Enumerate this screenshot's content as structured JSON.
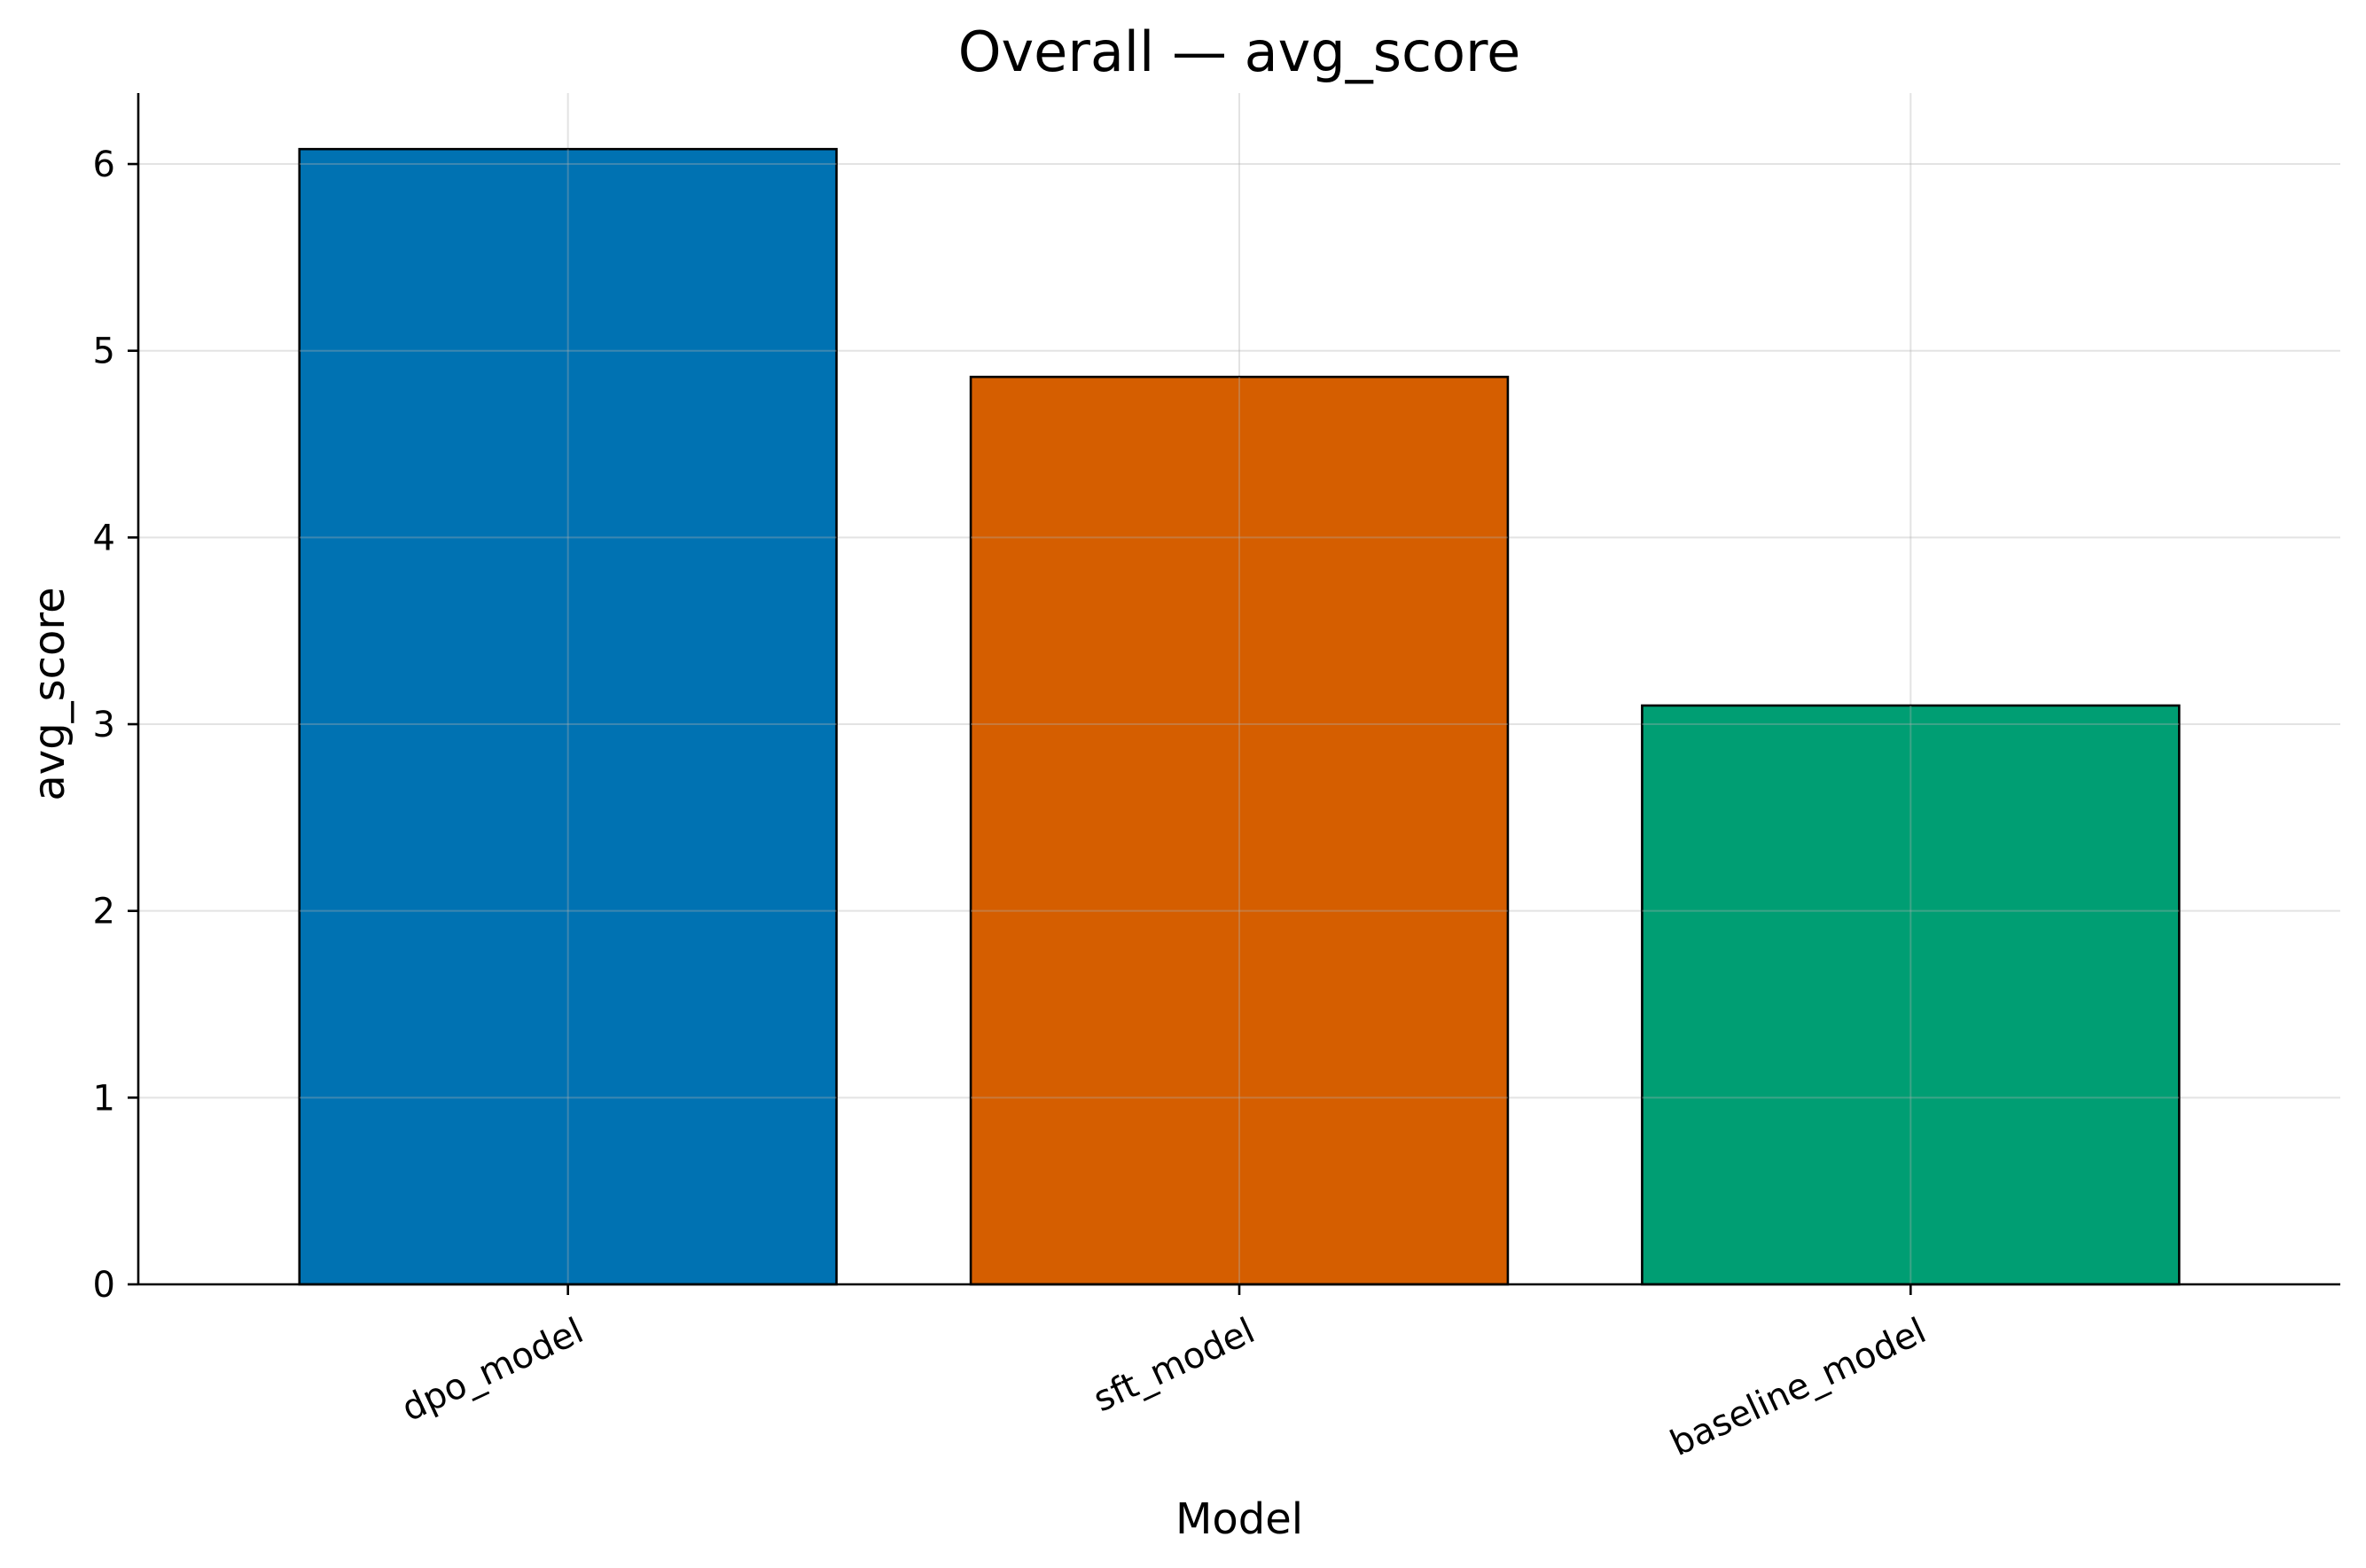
{
  "chart_data": {
    "type": "bar",
    "title": "Overall — avg_score",
    "xlabel": "Model",
    "ylabel": "avg_score",
    "categories": [
      "dpo_model",
      "sft_model",
      "baseline_model"
    ],
    "values": [
      6.08,
      4.86,
      3.1
    ],
    "colors": [
      "#0072B2",
      "#D55E00",
      "#009E73"
    ],
    "ylim": [
      0,
      6.38
    ],
    "yticks": [
      0,
      1,
      2,
      3,
      4,
      5,
      6
    ],
    "grid": true,
    "legend": "none"
  }
}
